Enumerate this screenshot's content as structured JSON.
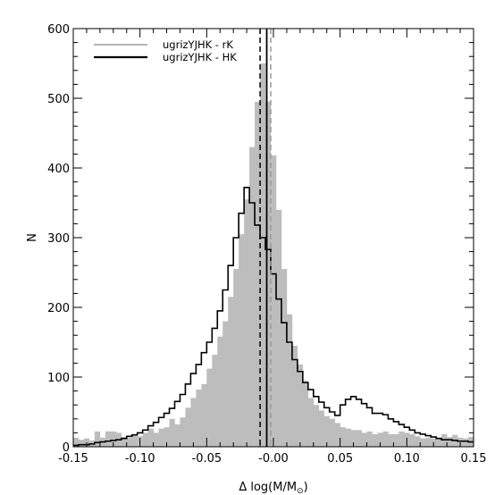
{
  "chart_data": {
    "type": "histogram",
    "xlabel": "Δ log(M/M",
    "xlabel_sub": "⊙",
    "xlabel_close": ")",
    "ylabel": "N",
    "xlim": [
      -0.15,
      0.15
    ],
    "ylim": [
      0,
      600
    ],
    "xticks": [
      -0.15,
      -0.1,
      -0.05,
      0.0,
      0.05,
      0.1,
      0.15
    ],
    "xtick_labels": [
      "-0.15",
      "-0.10",
      "-0.05",
      "-0.00",
      "0.05",
      "0.10",
      "0.15"
    ],
    "yticks": [
      0,
      100,
      200,
      300,
      400,
      500,
      600
    ],
    "ytick_labels": [
      "0",
      "100",
      "200",
      "300",
      "400",
      "500",
      "600"
    ],
    "bin_width": 0.004,
    "legend": [
      {
        "label": "ugrizYJHK - rK",
        "color": "#b4b4b4",
        "style": "filled"
      },
      {
        "label": "ugrizYJHK - HK",
        "color": "#000000",
        "style": "step"
      }
    ],
    "series": [
      {
        "name": "ugrizYJHK - rK",
        "color": "#bdbdbd",
        "values": [
          13,
          10,
          12,
          9,
          22,
          13,
          22,
          22,
          20,
          14,
          13,
          17,
          15,
          20,
          26,
          20,
          26,
          28,
          40,
          32,
          42,
          56,
          70,
          82,
          90,
          112,
          132,
          158,
          180,
          215,
          255,
          305,
          355,
          430,
          495,
          550,
          495,
          418,
          340,
          255,
          190,
          145,
          118,
          95,
          70,
          60,
          52,
          44,
          40,
          34,
          28,
          26,
          24,
          24,
          20,
          22,
          18,
          20,
          22,
          18,
          18,
          22,
          20,
          18,
          15,
          12,
          13,
          12,
          13,
          18,
          14,
          17,
          13,
          12,
          14
        ]
      },
      {
        "name": "ugrizYJHK - HK",
        "color": "#000000",
        "values": [
          2,
          3,
          3,
          4,
          6,
          7,
          8,
          9,
          10,
          12,
          15,
          17,
          20,
          24,
          30,
          35,
          42,
          48,
          55,
          65,
          75,
          90,
          105,
          118,
          135,
          150,
          170,
          195,
          225,
          260,
          300,
          335,
          372,
          350,
          318,
          300,
          283,
          248,
          212,
          178,
          150,
          125,
          108,
          92,
          82,
          72,
          64,
          56,
          50,
          45,
          60,
          68,
          72,
          68,
          62,
          56,
          48,
          48,
          46,
          40,
          36,
          32,
          28,
          24,
          20,
          18,
          16,
          14,
          12,
          10,
          10,
          9,
          8,
          8,
          7
        ]
      }
    ],
    "vlines": [
      {
        "x": -0.01,
        "style": "dashed",
        "color": "#000000"
      },
      {
        "x": -0.005,
        "style": "solid",
        "color": "#000000"
      },
      {
        "x": -0.002,
        "style": "dashed",
        "color": "#9a9a9a"
      }
    ],
    "grid": false
  }
}
